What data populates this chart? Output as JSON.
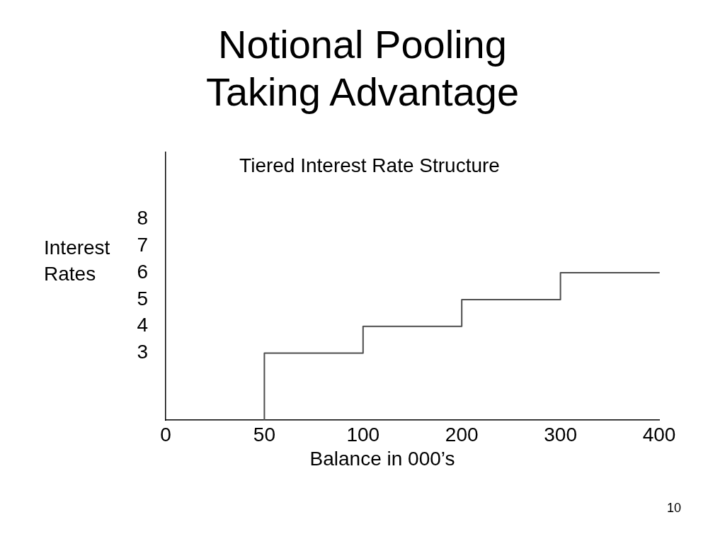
{
  "chart_data": {
    "type": "step",
    "title": "Notional Pooling Taking Advantage",
    "subtitle": "Tiered Interest Rate Structure",
    "xlabel": "Balance in 000’s",
    "ylabel": "Interest Rates",
    "annotations": [
      "10"
    ],
    "categories": [
      "0",
      "50",
      "100",
      "200",
      "300",
      "400"
    ],
    "series": [
      {
        "color": "#4d4d4d",
        "x": [
          "50",
          "50",
          "100",
          "200",
          "300",
          "400"
        ],
        "values": [
          0.5,
          3,
          4,
          5,
          6,
          6
        ]
      }
    ],
    "ylim": [
      0.5,
      10.5
    ],
    "yticks": [
      3,
      4,
      5,
      6,
      7,
      8
    ],
    "marker": "none",
    "line_style": "solid"
  }
}
